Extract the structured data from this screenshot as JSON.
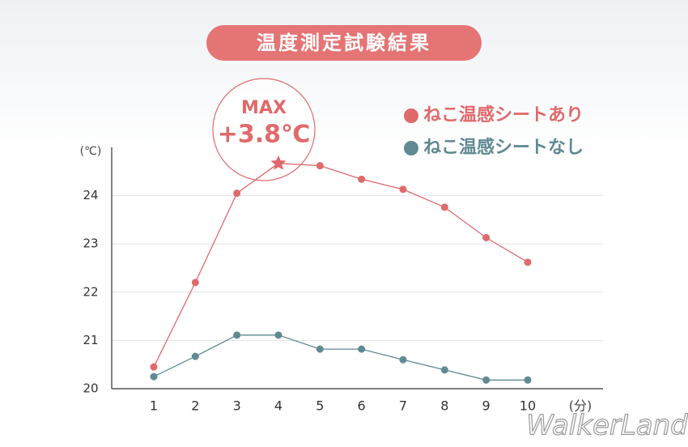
{
  "chart_data": {
    "type": "line",
    "title": "温度測定試験結果",
    "y_unit": "(℃)",
    "x_unit": "(分)",
    "annotation": {
      "label": "MAX",
      "text": "+3.8℃"
    },
    "categories": [
      "1",
      "2",
      "3",
      "4",
      "5",
      "6",
      "7",
      "8",
      "9",
      "10"
    ],
    "series": [
      {
        "name": "ねこ温感シートあり",
        "color": "#e0696b",
        "values": [
          20.45,
          22.2,
          24.05,
          24.67,
          24.62,
          24.34,
          24.13,
          23.76,
          23.13,
          22.62
        ]
      },
      {
        "name": "ねこ温感シートなし",
        "color": "#5f8a91",
        "values": [
          20.25,
          20.67,
          21.11,
          21.11,
          20.82,
          20.82,
          20.6,
          20.39,
          20.18,
          20.18
        ]
      }
    ],
    "ylim": [
      20,
      25
    ],
    "yticks": [
      20,
      21,
      22,
      23,
      24
    ],
    "grid": true,
    "watermark": "WalkerLand"
  }
}
